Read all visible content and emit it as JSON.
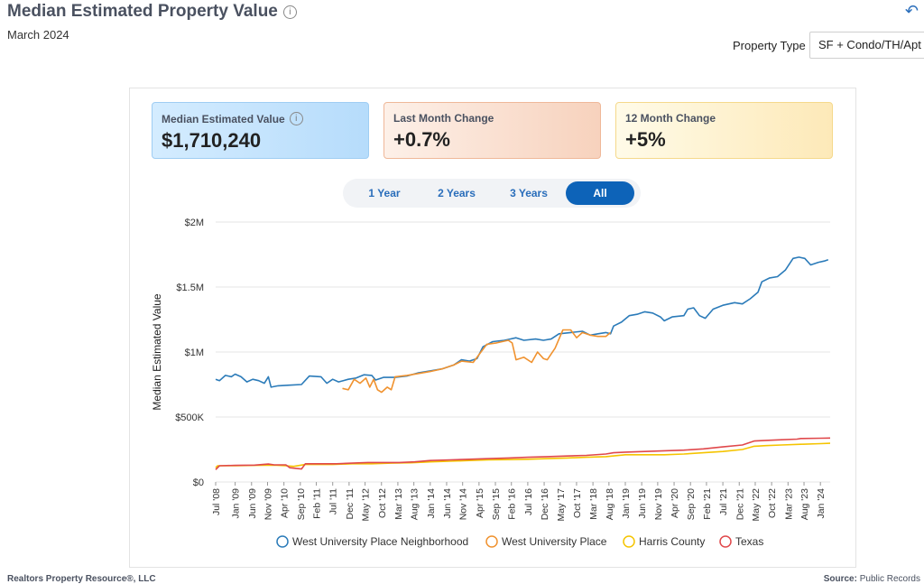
{
  "header": {
    "title": "Median Estimated Property Value",
    "subtitle": "March 2024",
    "property_type_label": "Property Type",
    "property_type_value": "SF + Condo/TH/Apt"
  },
  "cards": [
    {
      "label": "Median Estimated Value",
      "value": "$1,710,240"
    },
    {
      "label": "Last Month Change",
      "value": "+0.7%"
    },
    {
      "label": "12 Month Change",
      "value": "+5%"
    }
  ],
  "range_buttons": [
    "1 Year",
    "2 Years",
    "3 Years",
    "All"
  ],
  "range_selected": "All",
  "footer": {
    "left": "Realtors Property Resource®, LLC",
    "right_label": "Source:",
    "right_value": "Public Records"
  },
  "chart_data": {
    "type": "line",
    "ylabel": "Median Estimated Value",
    "ylim": [
      0,
      2000000
    ],
    "yticks": [
      0,
      500000,
      1000000,
      1500000,
      2000000
    ],
    "ytick_labels": [
      "$0",
      "$500K",
      "$1M",
      "$1.5M",
      "$2M"
    ],
    "xlim": [
      2008.5,
      2024.25
    ],
    "xticks": [
      {
        "label": "Jul '08",
        "t": 2008.5
      },
      {
        "label": "Jan '09",
        "t": 2009.0
      },
      {
        "label": "Jun '09",
        "t": 2009.42
      },
      {
        "label": "Nov '09",
        "t": 2009.83
      },
      {
        "label": "Apr '10",
        "t": 2010.25
      },
      {
        "label": "Sep '10",
        "t": 2010.67
      },
      {
        "label": "Feb '11",
        "t": 2011.08
      },
      {
        "label": "Jul '11",
        "t": 2011.5
      },
      {
        "label": "Dec '11",
        "t": 2011.92
      },
      {
        "label": "May '12",
        "t": 2012.33
      },
      {
        "label": "Oct '12",
        "t": 2012.75
      },
      {
        "label": "Mar '13",
        "t": 2013.17
      },
      {
        "label": "Aug '13",
        "t": 2013.58
      },
      {
        "label": "Jan '14",
        "t": 2014.0
      },
      {
        "label": "Jun '14",
        "t": 2014.42
      },
      {
        "label": "Nov '14",
        "t": 2014.83
      },
      {
        "label": "Apr '15",
        "t": 2015.25
      },
      {
        "label": "Sep '15",
        "t": 2015.67
      },
      {
        "label": "Feb '16",
        "t": 2016.08
      },
      {
        "label": "Jul '16",
        "t": 2016.5
      },
      {
        "label": "Dec '16",
        "t": 2016.92
      },
      {
        "label": "May '17",
        "t": 2017.33
      },
      {
        "label": "Oct '17",
        "t": 2017.75
      },
      {
        "label": "Mar '18",
        "t": 2018.17
      },
      {
        "label": "Aug '18",
        "t": 2018.58
      },
      {
        "label": "Jan '19",
        "t": 2019.0
      },
      {
        "label": "Jun '19",
        "t": 2019.42
      },
      {
        "label": "Nov '19",
        "t": 2019.83
      },
      {
        "label": "Apr '20",
        "t": 2020.25
      },
      {
        "label": "Sep '20",
        "t": 2020.67
      },
      {
        "label": "Feb '21",
        "t": 2021.08
      },
      {
        "label": "Jul '21",
        "t": 2021.5
      },
      {
        "label": "Dec '21",
        "t": 2021.92
      },
      {
        "label": "May '22",
        "t": 2022.33
      },
      {
        "label": "Oct '22",
        "t": 2022.75
      },
      {
        "label": "Mar '23",
        "t": 2023.17
      },
      {
        "label": "Aug '23",
        "t": 2023.58
      },
      {
        "label": "Jan '24",
        "t": 2024.0
      }
    ],
    "legend_position": "bottom",
    "series": [
      {
        "name": "West University Place Neighborhood",
        "color": "#2b7bb9",
        "points": [
          [
            2008.5,
            790000
          ],
          [
            2008.6,
            780000
          ],
          [
            2008.75,
            820000
          ],
          [
            2008.9,
            810000
          ],
          [
            2009.0,
            830000
          ],
          [
            2009.15,
            810000
          ],
          [
            2009.3,
            770000
          ],
          [
            2009.45,
            790000
          ],
          [
            2009.6,
            780000
          ],
          [
            2009.75,
            760000
          ],
          [
            2009.85,
            810000
          ],
          [
            2009.92,
            730000
          ],
          [
            2010.1,
            740000
          ],
          [
            2010.4,
            745000
          ],
          [
            2010.7,
            750000
          ],
          [
            2010.9,
            815000
          ],
          [
            2011.2,
            810000
          ],
          [
            2011.35,
            760000
          ],
          [
            2011.5,
            790000
          ],
          [
            2011.65,
            770000
          ],
          [
            2011.9,
            790000
          ],
          [
            2012.1,
            800000
          ],
          [
            2012.3,
            825000
          ],
          [
            2012.5,
            820000
          ],
          [
            2012.6,
            785000
          ],
          [
            2012.8,
            805000
          ],
          [
            2013.1,
            805000
          ],
          [
            2013.4,
            815000
          ],
          [
            2013.7,
            840000
          ],
          [
            2014.0,
            855000
          ],
          [
            2014.3,
            870000
          ],
          [
            2014.6,
            900000
          ],
          [
            2014.8,
            940000
          ],
          [
            2015.0,
            930000
          ],
          [
            2015.2,
            950000
          ],
          [
            2015.35,
            1040000
          ],
          [
            2015.6,
            1080000
          ],
          [
            2015.9,
            1090000
          ],
          [
            2016.05,
            1100000
          ],
          [
            2016.2,
            1110000
          ],
          [
            2016.4,
            1090000
          ],
          [
            2016.7,
            1100000
          ],
          [
            2016.9,
            1090000
          ],
          [
            2017.1,
            1100000
          ],
          [
            2017.3,
            1140000
          ],
          [
            2017.6,
            1150000
          ],
          [
            2017.9,
            1160000
          ],
          [
            2018.1,
            1130000
          ],
          [
            2018.3,
            1140000
          ],
          [
            2018.5,
            1150000
          ],
          [
            2018.62,
            1140000
          ],
          [
            2018.7,
            1200000
          ],
          [
            2018.9,
            1230000
          ],
          [
            2019.1,
            1280000
          ],
          [
            2019.3,
            1290000
          ],
          [
            2019.5,
            1310000
          ],
          [
            2019.7,
            1300000
          ],
          [
            2019.9,
            1270000
          ],
          [
            2020.0,
            1240000
          ],
          [
            2020.2,
            1270000
          ],
          [
            2020.5,
            1280000
          ],
          [
            2020.6,
            1330000
          ],
          [
            2020.75,
            1340000
          ],
          [
            2020.9,
            1280000
          ],
          [
            2021.05,
            1260000
          ],
          [
            2021.25,
            1330000
          ],
          [
            2021.5,
            1360000
          ],
          [
            2021.8,
            1380000
          ],
          [
            2022.0,
            1370000
          ],
          [
            2022.2,
            1410000
          ],
          [
            2022.4,
            1460000
          ],
          [
            2022.5,
            1540000
          ],
          [
            2022.7,
            1570000
          ],
          [
            2022.9,
            1580000
          ],
          [
            2023.1,
            1630000
          ],
          [
            2023.3,
            1720000
          ],
          [
            2023.45,
            1730000
          ],
          [
            2023.6,
            1720000
          ],
          [
            2023.75,
            1670000
          ],
          [
            2023.95,
            1690000
          ],
          [
            2024.1,
            1700000
          ],
          [
            2024.2,
            1710000
          ]
        ]
      },
      {
        "name": "West University Place",
        "color": "#f0922f",
        "points": [
          [
            2011.75,
            720000
          ],
          [
            2011.9,
            710000
          ],
          [
            2012.05,
            790000
          ],
          [
            2012.2,
            760000
          ],
          [
            2012.35,
            800000
          ],
          [
            2012.45,
            730000
          ],
          [
            2012.55,
            790000
          ],
          [
            2012.65,
            710000
          ],
          [
            2012.75,
            690000
          ],
          [
            2012.9,
            730000
          ],
          [
            2013.0,
            710000
          ],
          [
            2013.1,
            810000
          ],
          [
            2013.4,
            820000
          ],
          [
            2013.7,
            835000
          ],
          [
            2014.0,
            850000
          ],
          [
            2014.3,
            870000
          ],
          [
            2014.6,
            900000
          ],
          [
            2014.8,
            930000
          ],
          [
            2015.1,
            920000
          ],
          [
            2015.3,
            1000000
          ],
          [
            2015.45,
            1060000
          ],
          [
            2015.7,
            1070000
          ],
          [
            2016.0,
            1090000
          ],
          [
            2016.1,
            1070000
          ],
          [
            2016.2,
            940000
          ],
          [
            2016.4,
            960000
          ],
          [
            2016.6,
            920000
          ],
          [
            2016.75,
            1000000
          ],
          [
            2016.9,
            950000
          ],
          [
            2017.0,
            940000
          ],
          [
            2017.2,
            1030000
          ],
          [
            2017.4,
            1170000
          ],
          [
            2017.6,
            1170000
          ],
          [
            2017.75,
            1110000
          ],
          [
            2017.9,
            1150000
          ],
          [
            2018.1,
            1130000
          ],
          [
            2018.3,
            1120000
          ],
          [
            2018.5,
            1120000
          ],
          [
            2018.62,
            1150000
          ]
        ]
      },
      {
        "name": "Harris County",
        "color": "#f5c400",
        "points": [
          [
            2008.5,
            110000
          ],
          [
            2008.55,
            125000
          ],
          [
            2009.0,
            125000
          ],
          [
            2009.5,
            128000
          ],
          [
            2010.0,
            130000
          ],
          [
            2010.3,
            125000
          ],
          [
            2010.5,
            120000
          ],
          [
            2010.8,
            135000
          ],
          [
            2011.5,
            135000
          ],
          [
            2012.0,
            140000
          ],
          [
            2012.5,
            140000
          ],
          [
            2013.0,
            145000
          ],
          [
            2013.5,
            148000
          ],
          [
            2014.0,
            155000
          ],
          [
            2014.5,
            160000
          ],
          [
            2015.0,
            165000
          ],
          [
            2015.5,
            170000
          ],
          [
            2016.0,
            172000
          ],
          [
            2016.5,
            175000
          ],
          [
            2017.0,
            180000
          ],
          [
            2017.5,
            185000
          ],
          [
            2018.0,
            190000
          ],
          [
            2018.5,
            195000
          ],
          [
            2019.0,
            210000
          ],
          [
            2019.5,
            210000
          ],
          [
            2020.0,
            210000
          ],
          [
            2020.5,
            215000
          ],
          [
            2021.0,
            225000
          ],
          [
            2021.5,
            235000
          ],
          [
            2022.0,
            250000
          ],
          [
            2022.3,
            275000
          ],
          [
            2022.6,
            280000
          ],
          [
            2023.0,
            285000
          ],
          [
            2023.5,
            290000
          ],
          [
            2024.0,
            295000
          ],
          [
            2024.25,
            298000
          ]
        ]
      },
      {
        "name": "Texas",
        "color": "#e0484b",
        "points": [
          [
            2008.5,
            95000
          ],
          [
            2008.6,
            125000
          ],
          [
            2009.0,
            128000
          ],
          [
            2009.5,
            130000
          ],
          [
            2009.85,
            138000
          ],
          [
            2010.0,
            132000
          ],
          [
            2010.3,
            132000
          ],
          [
            2010.4,
            110000
          ],
          [
            2010.7,
            100000
          ],
          [
            2010.8,
            140000
          ],
          [
            2011.2,
            140000
          ],
          [
            2011.6,
            140000
          ],
          [
            2012.0,
            145000
          ],
          [
            2012.4,
            150000
          ],
          [
            2012.8,
            150000
          ],
          [
            2013.2,
            150000
          ],
          [
            2013.6,
            155000
          ],
          [
            2014.0,
            165000
          ],
          [
            2014.5,
            170000
          ],
          [
            2015.0,
            175000
          ],
          [
            2015.5,
            180000
          ],
          [
            2016.0,
            185000
          ],
          [
            2016.5,
            190000
          ],
          [
            2017.0,
            195000
          ],
          [
            2017.5,
            200000
          ],
          [
            2018.0,
            205000
          ],
          [
            2018.5,
            215000
          ],
          [
            2018.7,
            225000
          ],
          [
            2019.0,
            230000
          ],
          [
            2019.5,
            235000
          ],
          [
            2020.0,
            240000
          ],
          [
            2020.5,
            245000
          ],
          [
            2021.0,
            255000
          ],
          [
            2021.5,
            270000
          ],
          [
            2022.0,
            285000
          ],
          [
            2022.3,
            315000
          ],
          [
            2022.6,
            320000
          ],
          [
            2023.0,
            325000
          ],
          [
            2023.4,
            330000
          ],
          [
            2023.5,
            335000
          ],
          [
            2024.0,
            337000
          ],
          [
            2024.25,
            338000
          ]
        ]
      }
    ]
  }
}
